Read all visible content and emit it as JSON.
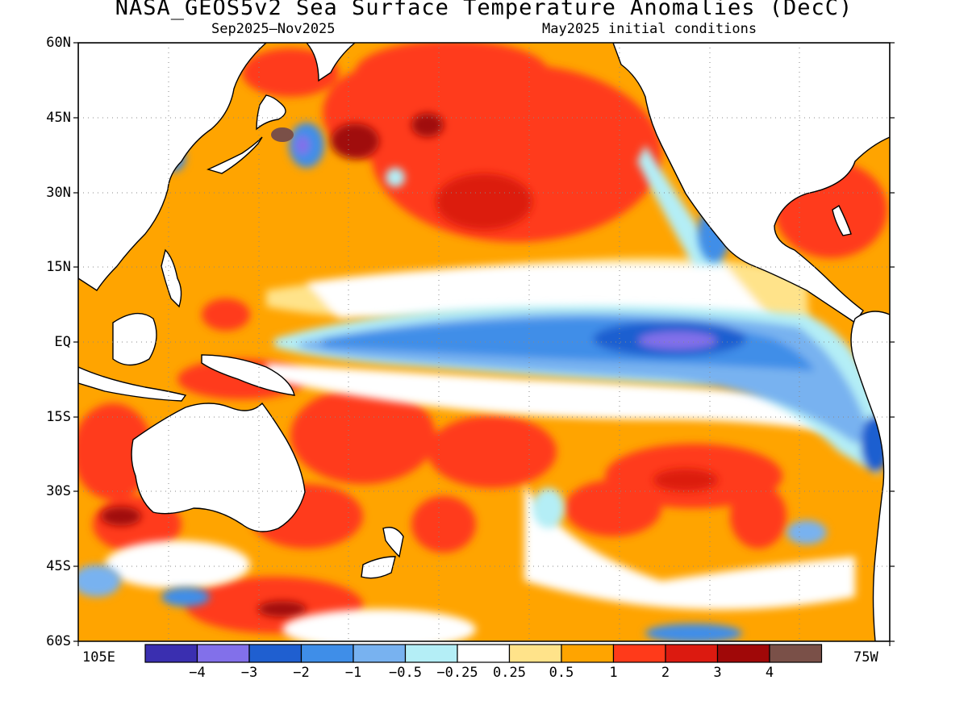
{
  "title": "NASA_GEOS5v2 Sea Surface Temperature Anomalies (DecC)",
  "subtitle_left": "Sep2025–Nov2025",
  "subtitle_right": "May2025 initial conditions",
  "lat_labels": [
    "60N",
    "45N",
    "30N",
    "15N",
    "EQ",
    "15S",
    "30S",
    "45S",
    "60S"
  ],
  "lon_labels": [
    "105E",
    "75W"
  ],
  "colorbar": {
    "colors": [
      "#3a2fb0",
      "#8270ea",
      "#1f5fd0",
      "#3f8ee8",
      "#78b2f0",
      "#b4eef6",
      "#ffffff",
      "#ffe38a",
      "#ffa400",
      "#ff3a1a",
      "#dc1a10",
      "#a00808",
      "#7a5048"
    ],
    "labels": [
      "−4",
      "−3",
      "−2",
      "−1",
      "−0.5",
      "−0.25",
      "0.25",
      "0.5",
      "1",
      "2",
      "3",
      "4"
    ]
  },
  "icons": [
    "coastline-outline",
    "gridlines-dotted"
  ]
}
